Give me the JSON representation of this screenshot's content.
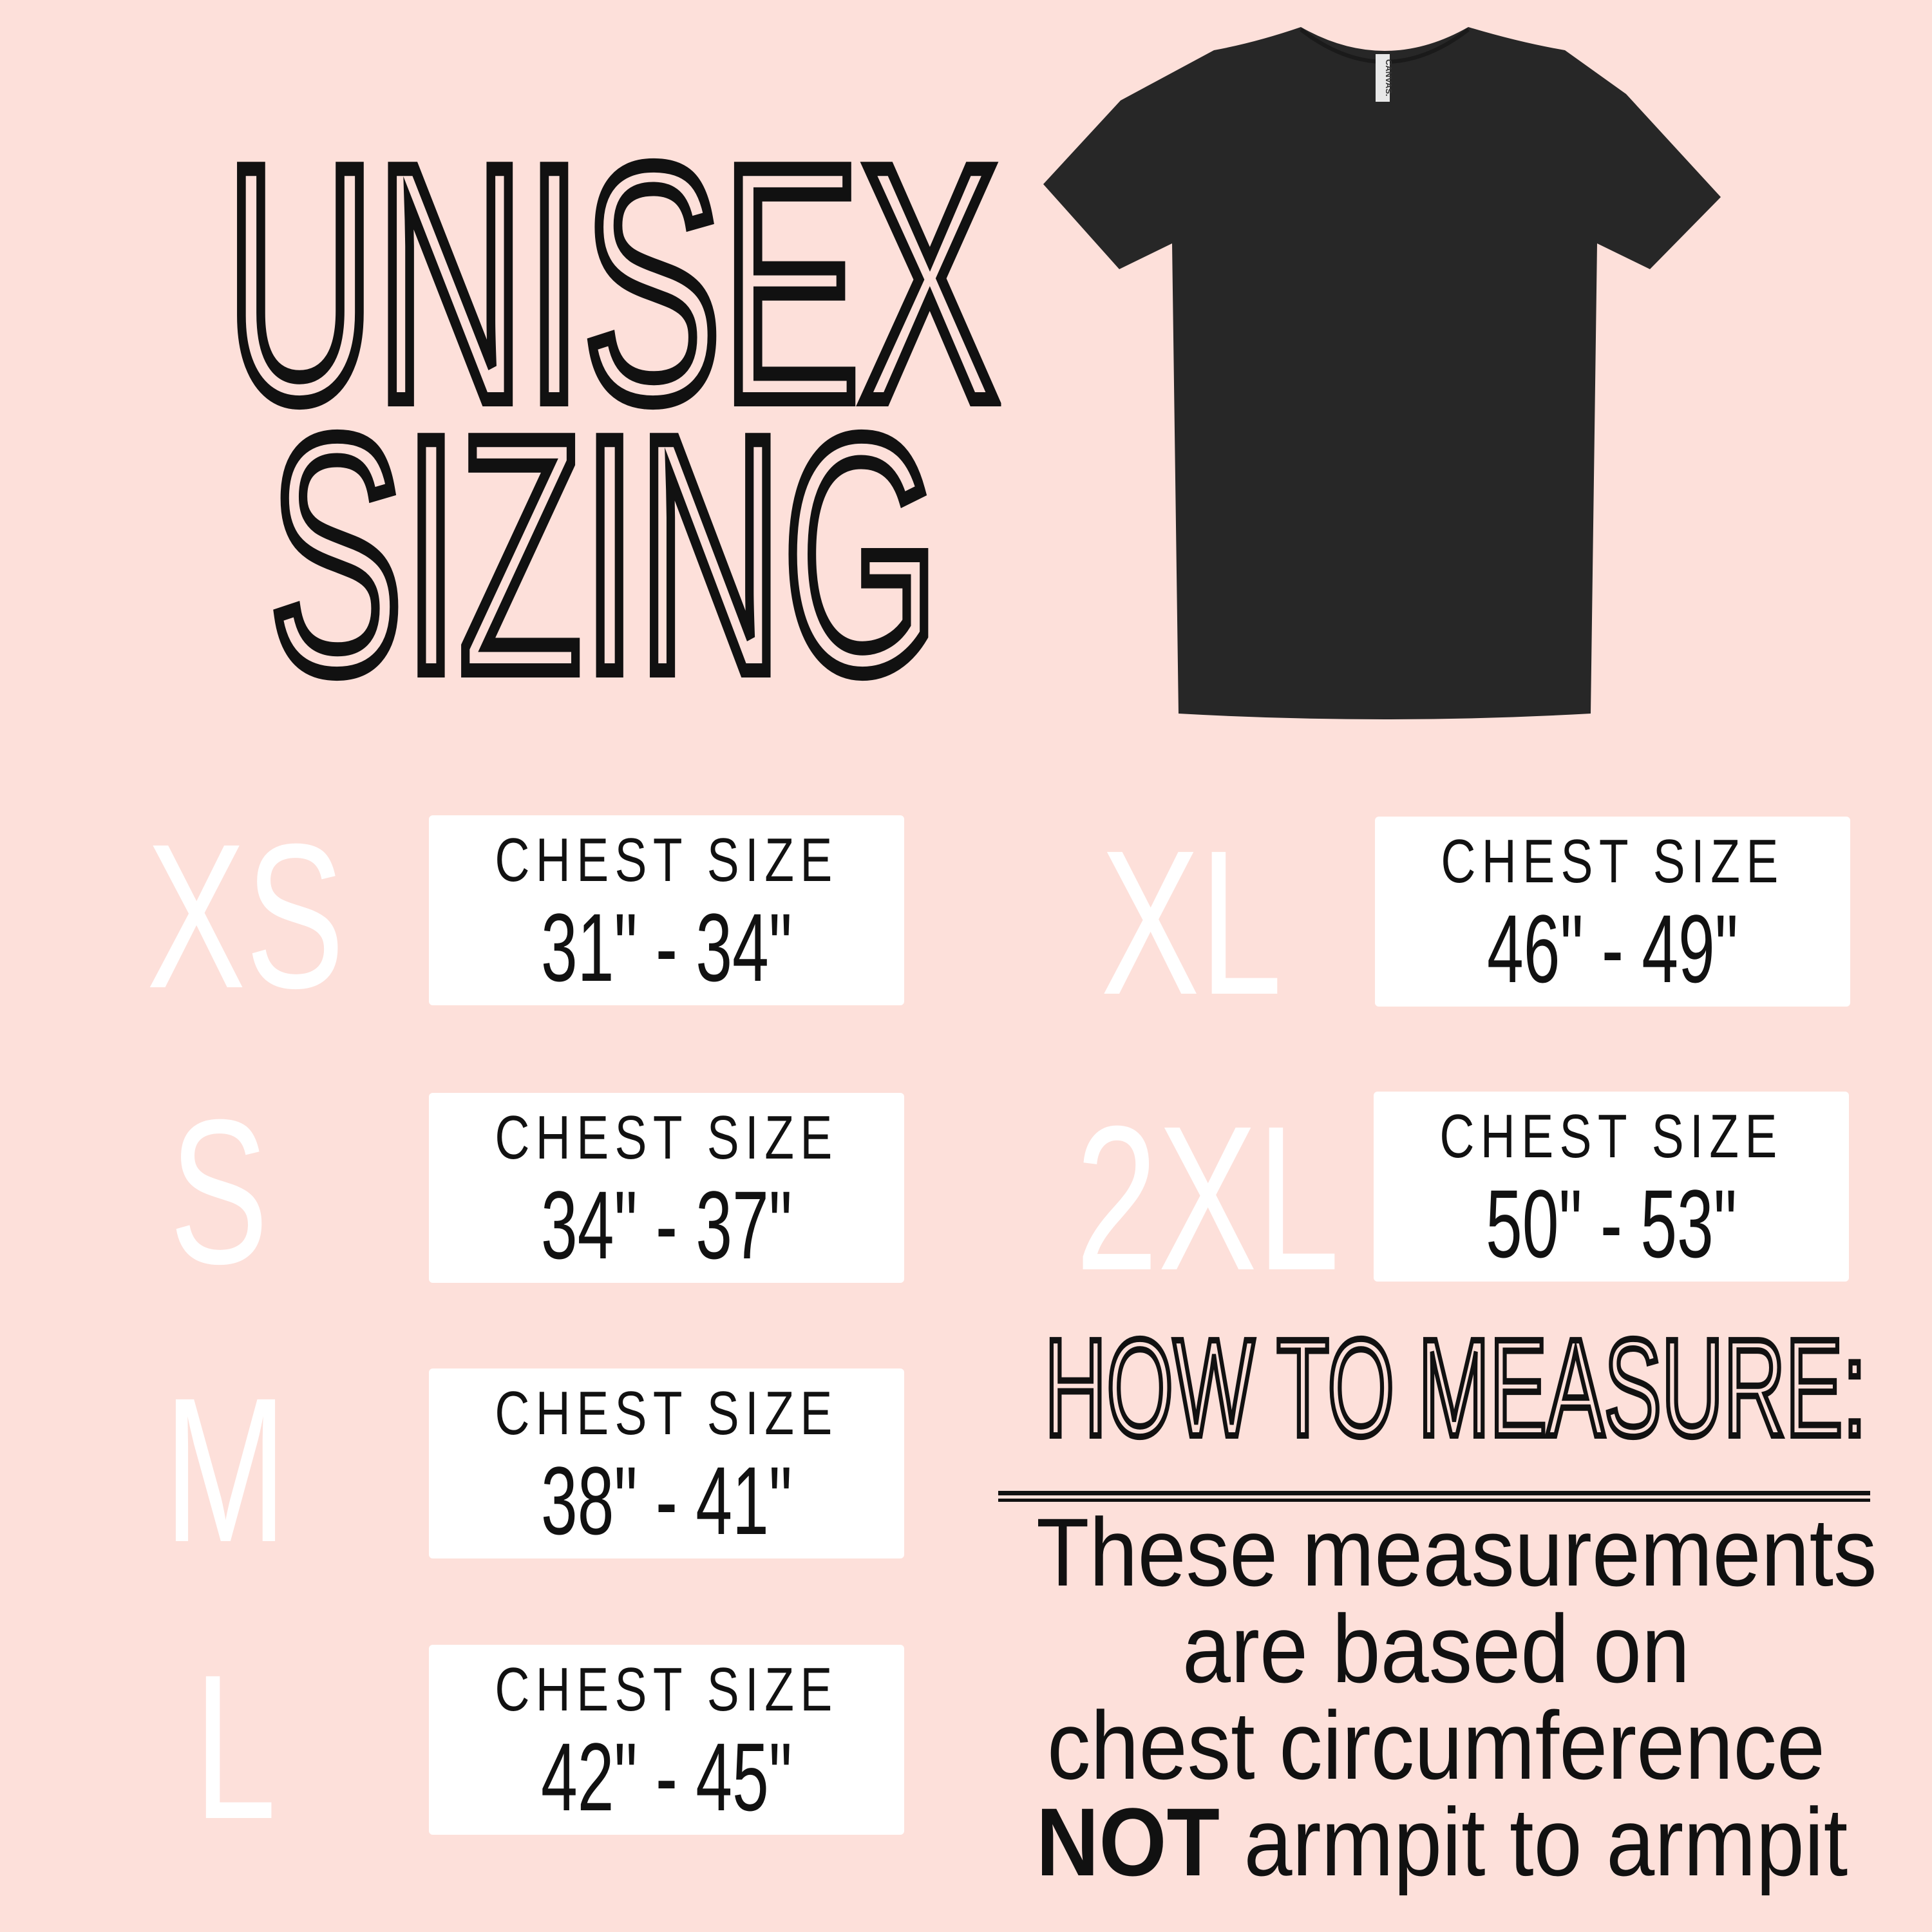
{
  "colors": {
    "background": "#fde0da",
    "box": "#ffffff",
    "text": "#111111",
    "size_label": "#ffffff",
    "shirt": "#272727"
  },
  "header": {
    "title_line1": "UNISEX",
    "title_line2": "SIZING"
  },
  "product_image": {
    "icon": "black-tshirt",
    "tag_text": "CANVAS."
  },
  "sizes": [
    {
      "label": "XS",
      "caption": "CHEST SIZE",
      "range": "31\" - 34\""
    },
    {
      "label": "S",
      "caption": "CHEST SIZE",
      "range": "34\" - 37\""
    },
    {
      "label": "M",
      "caption": "CHEST SIZE",
      "range": "38\" - 41\""
    },
    {
      "label": "L",
      "caption": "CHEST SIZE",
      "range": "42\" - 45\""
    },
    {
      "label": "XL",
      "caption": "CHEST SIZE",
      "range": "46\" - 49\""
    },
    {
      "label": "2XL",
      "caption": "CHEST SIZE",
      "range": "50\" - 53\""
    }
  ],
  "measure": {
    "heading": "HOW TO MEASURE:",
    "line1": "These measurements",
    "line2": "are based on",
    "line3": "chest circumference",
    "line4_bold": "NOT",
    "line4_rest": " armpit to armpit"
  }
}
